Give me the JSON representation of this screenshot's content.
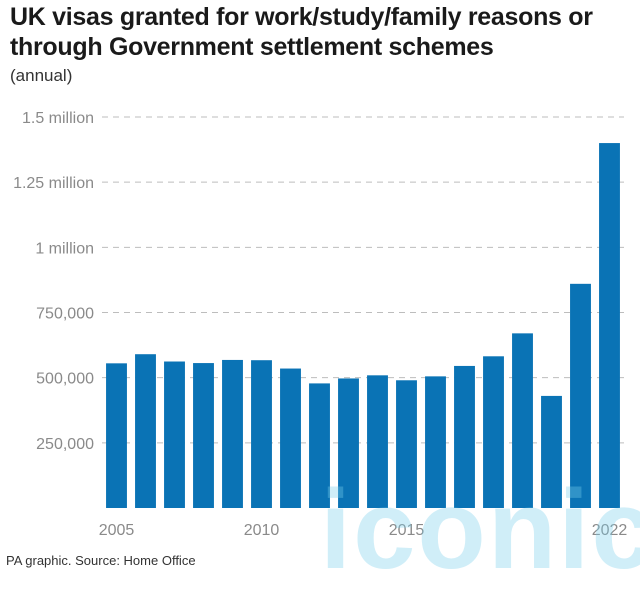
{
  "title": "UK visas granted for work/study/family reasons or through Government settlement schemes",
  "subtitle": "(annual)",
  "footer": "PA graphic. Source: Home Office",
  "watermark": "iconic",
  "colors": {
    "bar": "#0a73b5",
    "grid": "#bdbdbd",
    "tick": "#8a8a8a"
  },
  "chart_data": {
    "type": "bar",
    "categories": [
      "2005",
      "2006",
      "2007",
      "2008",
      "2009",
      "2010",
      "2011",
      "2012",
      "2013",
      "2014",
      "2015",
      "2016",
      "2017",
      "2018",
      "2019",
      "2020",
      "2021",
      "2022"
    ],
    "values": [
      555000,
      590000,
      562000,
      556000,
      568000,
      567000,
      535000,
      478000,
      497000,
      509000,
      490000,
      505000,
      545000,
      582000,
      670000,
      430000,
      860000,
      1400000
    ],
    "xticks": [
      {
        "value": "2005",
        "label": "2005"
      },
      {
        "value": "2010",
        "label": "2010"
      },
      {
        "value": "2015",
        "label": "2015"
      },
      {
        "value": "2022",
        "label": "2022"
      }
    ],
    "yticks": [
      {
        "value": 250000,
        "label": "250,000"
      },
      {
        "value": 500000,
        "label": "500,000"
      },
      {
        "value": 750000,
        "label": "750,000"
      },
      {
        "value": 1000000,
        "label": "1 million"
      },
      {
        "value": 1250000,
        "label": "1.25 million"
      },
      {
        "value": 1500000,
        "label": "1.5 million"
      }
    ],
    "ylim": [
      0,
      1500000
    ],
    "grid": true,
    "xlabel": "",
    "ylabel": ""
  }
}
